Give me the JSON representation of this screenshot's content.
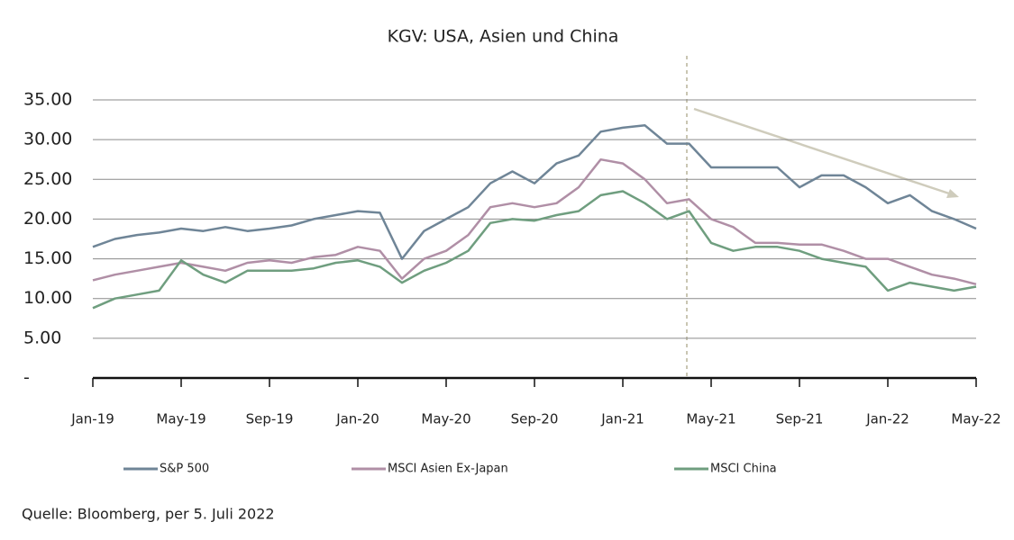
{
  "chart_data": {
    "type": "line",
    "title": "KGV: USA, Asien und China",
    "source": "Quelle: Bloomberg, per 5. Juli 2022",
    "categories": [
      "Jan-19",
      null,
      null,
      null,
      "May-19",
      null,
      null,
      null,
      "Sep-19",
      null,
      null,
      null,
      "Jan-20",
      null,
      null,
      null,
      "May-20",
      null,
      null,
      null,
      "Sep-20",
      null,
      null,
      null,
      "Jan-21",
      null,
      null,
      null,
      "May-21",
      null,
      null,
      null,
      "Sep-21",
      null,
      null,
      null,
      "Jan-22",
      null,
      null,
      null,
      "May-22"
    ],
    "series": [
      {
        "name": "S&P 500",
        "color": "#6f8597",
        "values": [
          16.5,
          17.5,
          18,
          18.3,
          18.8,
          18.5,
          19,
          18.5,
          18.8,
          19.2,
          20,
          20.5,
          21,
          20.8,
          15,
          18.5,
          20,
          21.5,
          24.5,
          26,
          24.5,
          27,
          28,
          31,
          31.5,
          31.8,
          29.5,
          29.5,
          26.5,
          26.5,
          26.5,
          26.5,
          24,
          25.5,
          25.5,
          24,
          22,
          23,
          21,
          20,
          18.8
        ]
      },
      {
        "name": "MSCI Asien Ex-Japan",
        "color": "#b08fa6",
        "values": [
          12.3,
          13,
          13.5,
          14,
          14.5,
          14,
          13.5,
          14.5,
          14.8,
          14.5,
          15.2,
          15.5,
          16.5,
          16,
          12.5,
          15,
          16,
          18,
          21.5,
          22,
          21.5,
          22,
          24,
          27.5,
          27,
          25,
          22,
          22.5,
          20,
          19,
          17,
          17,
          16.8,
          16.8,
          16,
          15,
          15,
          14,
          13,
          12.5,
          11.8
        ]
      },
      {
        "name": "MSCI China",
        "color": "#6f9e7f",
        "values": [
          8.8,
          10,
          10.5,
          11,
          14.8,
          13,
          12,
          13.5,
          13.5,
          13.5,
          13.8,
          14.5,
          14.8,
          14,
          12,
          13.5,
          14.5,
          16,
          19.5,
          20,
          19.8,
          20.5,
          21,
          23,
          23.5,
          22,
          20,
          21,
          17,
          16,
          16.5,
          16.5,
          16,
          15,
          14.5,
          14,
          11,
          12,
          11.5,
          11,
          11.5
        ]
      }
    ],
    "ylim": [
      0,
      35
    ],
    "yticks": [
      {
        "value": 0,
        "label": "-"
      },
      {
        "value": 5,
        "label": "5.00"
      },
      {
        "value": 10,
        "label": "10.00"
      },
      {
        "value": 15,
        "label": "15.00"
      },
      {
        "value": 20,
        "label": "20.00"
      },
      {
        "value": 25,
        "label": "25.00"
      },
      {
        "value": 30,
        "label": "30.00"
      },
      {
        "value": 35,
        "label": "35.00"
      }
    ],
    "grid": true
  }
}
